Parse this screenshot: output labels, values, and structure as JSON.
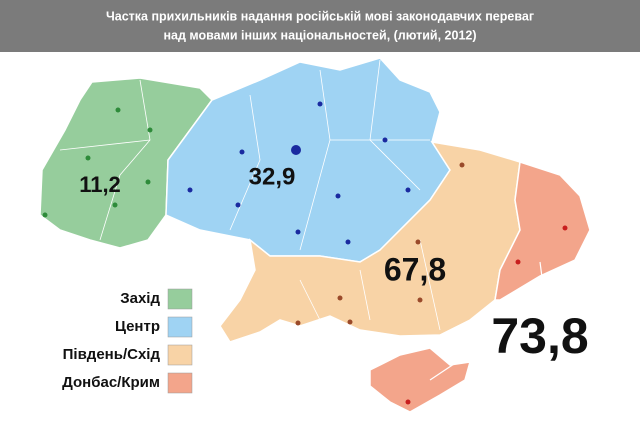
{
  "header": {
    "title": [
      "Частка прихильників надання російській мові законодавчих переваг",
      "над мовами інших національностей, (лютий, 2012)"
    ]
  },
  "regions": [
    {
      "name": "Захід",
      "value": 11.2,
      "value_label": "11,2",
      "color": "#96cd9c"
    },
    {
      "name": "Центр",
      "value": 32.9,
      "value_label": "32,9",
      "color": "#9fd3f3"
    },
    {
      "name": "Південь/Схід",
      "value": 67.8,
      "value_label": "67,8",
      "color": "#f8d3a6"
    },
    {
      "name": "Донбас/Крим",
      "value": 73.8,
      "value_label": "73,8",
      "color": "#f3a58b"
    }
  ]
}
